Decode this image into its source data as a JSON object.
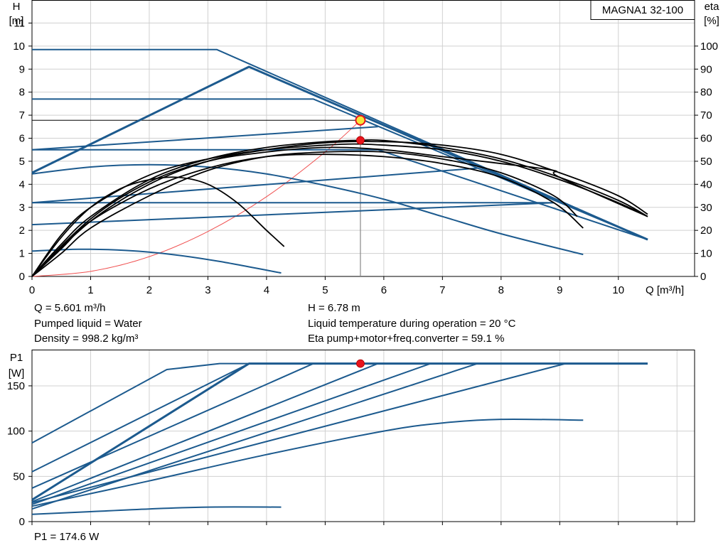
{
  "colors": {
    "blue": "#1c5a8e",
    "black": "#000000",
    "red": "#e8141c",
    "yellow": "#f5e63a",
    "grid": "#d0d0d0",
    "system_curve": "#f05050"
  },
  "title": "MAGNA1 32-100",
  "info": {
    "q": "Q = 5.601 m³/h",
    "h": "H = 6.78 m",
    "liquid": "Pumped liquid = Water",
    "temperature": "Liquid temperature during operation = 20 °C",
    "density": "Density = 998.2 kg/m³",
    "eta": "Eta pump+motor+freq.converter = 59.1 %",
    "p1": "P1 = 174.6 W"
  },
  "chart_data": [
    {
      "type": "line",
      "name": "head_efficiency",
      "ylabel_left": [
        "H",
        "[m]"
      ],
      "ylabel_right": [
        "eta",
        "[%]"
      ],
      "xlabel": "Q [m³/h]",
      "xlim": [
        0,
        11.3
      ],
      "ylim": [
        0,
        12
      ],
      "y2lim": [
        0,
        120
      ],
      "xticks": [
        0,
        1,
        2,
        3,
        4,
        5,
        6,
        7,
        8,
        9,
        10
      ],
      "yticks": [
        0,
        1,
        2,
        3,
        4,
        5,
        6,
        7,
        8,
        9,
        10,
        11
      ],
      "y2ticks": [
        0,
        10,
        20,
        30,
        40,
        50,
        60,
        70,
        80,
        90,
        100
      ],
      "grid": true,
      "head_curves": [
        {
          "style": "thick",
          "x": [
            0,
            3.7,
            10.5
          ],
          "y": [
            4.5,
            9.1,
            1.6
          ]
        },
        {
          "style": "thin",
          "x": [
            0,
            3.15,
            10.5
          ],
          "y": [
            9.85,
            9.85,
            1.6
          ]
        },
        {
          "style": "thin",
          "x": [
            0,
            4.8,
            10.5
          ],
          "y": [
            7.7,
            7.7,
            1.6
          ]
        },
        {
          "style": "thin",
          "x": [
            0,
            5.9
          ],
          "y": [
            5.5,
            6.5
          ]
        },
        {
          "style": "thin",
          "x": [
            0,
            5.9,
            10.5
          ],
          "y": [
            5.5,
            5.5,
            1.6
          ]
        },
        {
          "style": "thin",
          "x": [
            0,
            7.6
          ],
          "y": [
            3.2,
            4.7
          ]
        },
        {
          "style": "thin",
          "x": [
            0,
            8.9
          ],
          "y": [
            3.2,
            3.2
          ]
        },
        {
          "style": "thin",
          "x": [
            0,
            8.9
          ],
          "y": [
            2.25,
            3.2
          ]
        },
        {
          "style": "thin",
          "x": [
            0,
            1.0,
            2.0,
            3.0,
            4.0,
            5.0,
            6.0,
            7.0,
            8.0,
            9.4
          ],
          "y": [
            4.45,
            4.75,
            4.85,
            4.75,
            4.45,
            3.95,
            3.35,
            2.6,
            1.85,
            0.95
          ]
        },
        {
          "style": "thin",
          "x": [
            0,
            0.8,
            1.6,
            2.4,
            3.2,
            4.25
          ],
          "y": [
            1.1,
            1.18,
            1.13,
            0.95,
            0.65,
            0.15
          ]
        }
      ],
      "efficiency_curves": [
        {
          "x": [
            0,
            0.5,
            1.0,
            1.5,
            2.0,
            2.5,
            3.0,
            3.5,
            4.0,
            4.3
          ],
          "y": [
            0,
            17,
            30,
            38,
            42,
            43,
            40,
            32,
            20,
            13
          ]
        },
        {
          "x": [
            0,
            0.5,
            1.0,
            2.0,
            3.0,
            4.0,
            5.0,
            6.0,
            7.0,
            8.0,
            8.9,
            9.4
          ],
          "y": [
            0,
            12,
            24,
            38,
            47,
            52,
            53,
            52,
            49,
            43,
            32,
            21
          ]
        },
        {
          "x": [
            0,
            0.5,
            1.0,
            2.0,
            3.0,
            4.0,
            5.0,
            5.5,
            6.0,
            7.0,
            8.0,
            9.0,
            10.0,
            10.5
          ],
          "y": [
            0,
            18,
            30,
            44,
            51,
            55,
            57,
            57.5,
            57,
            55,
            50,
            42,
            32,
            26
          ]
        },
        {
          "x": [
            0,
            0.5,
            1.0,
            2.0,
            3.0,
            4.0,
            5.0,
            5.6,
            6.0,
            7.0,
            8.0,
            9.0,
            10.0,
            10.5
          ],
          "y": [
            0,
            14,
            26,
            42,
            51,
            56,
            58.5,
            59.1,
            59,
            56,
            51,
            43,
            33,
            26
          ]
        },
        {
          "x": [
            0,
            0.5,
            1.0,
            2.0,
            3.0,
            4.0,
            5.0,
            6.0,
            7.0,
            8.0,
            8.9,
            9.3
          ],
          "y": [
            0,
            10,
            21,
            35,
            46,
            52,
            54,
            54,
            51,
            45,
            35,
            26
          ]
        },
        {
          "x": [
            0,
            1.0,
            2.0,
            3.0,
            4.0,
            5.0,
            6.0,
            7.0,
            8.0,
            8.9,
            9.0,
            10.5
          ],
          "y": [
            0,
            25,
            41,
            50,
            54,
            56,
            55,
            52,
            49,
            46,
            43,
            26
          ]
        },
        {
          "x": [
            0,
            1.0,
            2.0,
            3.0,
            4.0,
            5.0,
            6.0,
            7.0,
            8.0,
            9.0,
            10.0,
            10.5
          ],
          "y": [
            0,
            24,
            40,
            50,
            55,
            58,
            58.5,
            57,
            53,
            45,
            35,
            27
          ]
        }
      ],
      "system_curve": {
        "x": [
          0,
          1.0,
          2.0,
          3.0,
          4.0,
          5.0,
          5.601
        ],
        "y": [
          0,
          0.22,
          0.86,
          1.95,
          3.46,
          5.4,
          6.78
        ]
      },
      "duty_point": {
        "x": 5.601,
        "y": 6.78
      },
      "efficiency_point": {
        "x": 5.601,
        "y": 59.1
      }
    },
    {
      "type": "line",
      "name": "power",
      "ylabel": [
        "P1",
        "[W]"
      ],
      "xlim": [
        0,
        11.3
      ],
      "ylim": [
        0,
        190
      ],
      "yticks": [
        0,
        50,
        100,
        150
      ],
      "grid": true,
      "power_curves": [
        {
          "style": "thin",
          "x": [
            0,
            2.3,
            3.2,
            10.5
          ],
          "y": [
            87,
            168,
            174.6,
            174.6
          ]
        },
        {
          "style": "thin",
          "x": [
            0,
            3.7
          ],
          "y": [
            55,
            174.6
          ]
        },
        {
          "style": "thick",
          "x": [
            0,
            3.7,
            10.5
          ],
          "y": [
            24,
            174.6,
            174.6
          ]
        },
        {
          "style": "thin",
          "x": [
            0,
            4.8
          ],
          "y": [
            37,
            174.6
          ]
        },
        {
          "style": "thin",
          "x": [
            0,
            5.9
          ],
          "y": [
            22,
            174.6
          ]
        },
        {
          "style": "thin",
          "x": [
            0,
            6.8
          ],
          "y": [
            19,
            174.6
          ]
        },
        {
          "style": "thin",
          "x": [
            0,
            7.6
          ],
          "y": [
            14,
            174.6
          ]
        },
        {
          "style": "thin",
          "x": [
            0,
            9.1
          ],
          "y": [
            21,
            174.6
          ]
        },
        {
          "style": "thin",
          "x": [
            0,
            2.0,
            4.0,
            6.0,
            7.0,
            8.0,
            9.4
          ],
          "y": [
            17,
            45,
            74,
            100,
            109,
            113,
            112
          ]
        },
        {
          "style": "thin",
          "x": [
            0,
            1.0,
            2.0,
            3.0,
            4.25
          ],
          "y": [
            8,
            11,
            14,
            16,
            16
          ]
        }
      ],
      "duty_point": {
        "x": 5.601,
        "y": 174.6
      }
    }
  ]
}
